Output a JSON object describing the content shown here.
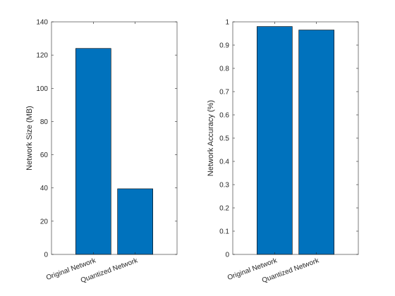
{
  "chart_data": [
    {
      "type": "bar",
      "categories": [
        "Original Network",
        "Quantized Network"
      ],
      "values": [
        124,
        39.5
      ],
      "title": "",
      "xlabel": "",
      "ylabel": "Network Size (MB)",
      "ylim": [
        0,
        140
      ],
      "yticks": [
        "0",
        "20",
        "40",
        "60",
        "80",
        "100",
        "120",
        "140"
      ],
      "grid": false,
      "bar_color": "#0072BD"
    },
    {
      "type": "bar",
      "categories": [
        "Original Network",
        "Quantized Network"
      ],
      "values": [
        0.98,
        0.965
      ],
      "title": "",
      "xlabel": "",
      "ylabel": "Network Accuracy (%)",
      "ylim": [
        0,
        1
      ],
      "yticks": [
        "0",
        "0.1",
        "0.2",
        "0.3",
        "0.4",
        "0.5",
        "0.6",
        "0.7",
        "0.8",
        "0.9",
        "1"
      ],
      "grid": false,
      "bar_color": "#0072BD"
    }
  ]
}
